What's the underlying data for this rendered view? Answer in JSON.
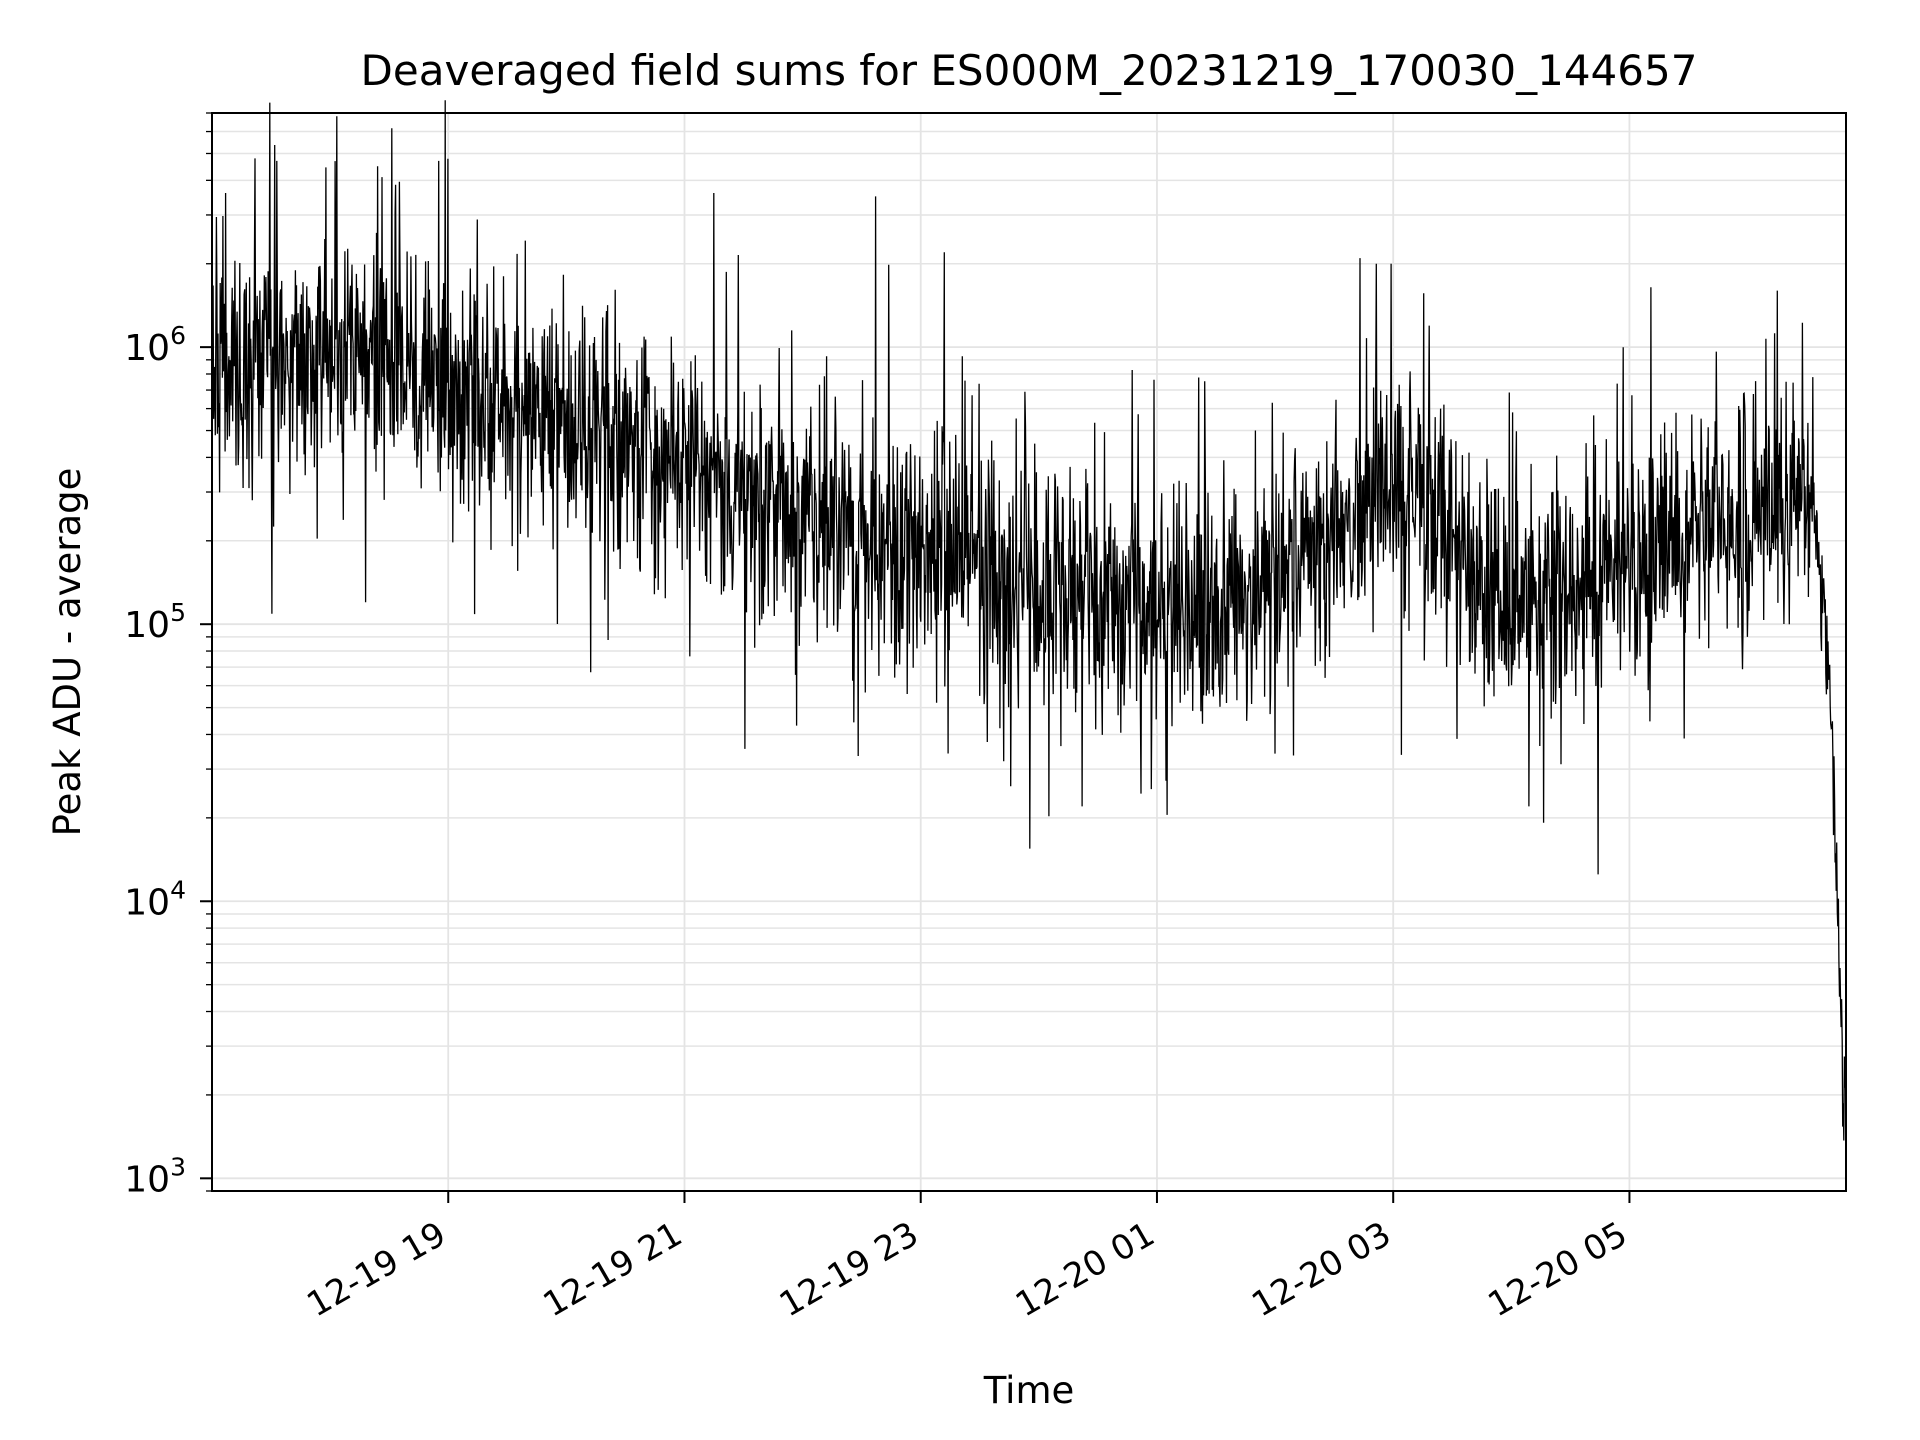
{
  "chart_data": {
    "type": "line",
    "title": "Deaveraged field sums for ES000M_20231219_170030_144657",
    "xlabel": "Time",
    "ylabel": "Peak ADU - average",
    "y_scale": "log",
    "ylim": [
      900,
      7000000
    ],
    "xlim": [
      "2023-12-19 17:00",
      "2023-12-20 06:50"
    ],
    "grid": true,
    "x_ticks": [
      {
        "label": "12-19 19",
        "value": "2023-12-19 19:00"
      },
      {
        "label": "12-19 21",
        "value": "2023-12-19 21:00"
      },
      {
        "label": "12-19 23",
        "value": "2023-12-19 23:00"
      },
      {
        "label": "12-20 01",
        "value": "2023-12-20 01:00"
      },
      {
        "label": "12-20 03",
        "value": "2023-12-20 03:00"
      },
      {
        "label": "12-20 05",
        "value": "2023-12-20 05:00"
      }
    ],
    "y_ticks": [
      {
        "base": "10",
        "exp": "3",
        "value": 1000
      },
      {
        "base": "10",
        "exp": "4",
        "value": 10000
      },
      {
        "base": "10",
        "exp": "5",
        "value": 100000
      },
      {
        "base": "10",
        "exp": "6",
        "value": 1000000
      }
    ],
    "series": [
      {
        "color": "#000000",
        "trend": {
          "time": [
            "2023-12-19 17:00",
            "2023-12-19 18:00",
            "2023-12-19 19:00",
            "2023-12-19 20:00",
            "2023-12-19 21:00",
            "2023-12-19 22:00",
            "2023-12-19 23:00",
            "2023-12-20 00:00",
            "2023-12-20 01:00",
            "2023-12-20 02:00",
            "2023-12-20 03:00",
            "2023-12-20 04:00",
            "2023-12-20 05:00",
            "2023-12-20 06:00",
            "2023-12-20 06:35",
            "2023-12-20 06:42",
            "2023-12-20 06:46",
            "2023-12-20 06:50"
          ],
          "value": [
            900000,
            900000,
            800000,
            500000,
            350000,
            230000,
            180000,
            130000,
            110000,
            140000,
            320000,
            110000,
            160000,
            260000,
            260000,
            60000,
            8000,
            1300
          ]
        },
        "peaks": [
          {
            "time": "2023-12-19 17:22",
            "value": 4800000
          },
          {
            "time": "2023-12-19 17:33",
            "value": 4700000
          },
          {
            "time": "2023-12-19 18:24",
            "value": 4500000
          },
          {
            "time": "2023-12-19 18:55",
            "value": 4700000
          },
          {
            "time": "2023-12-19 21:15",
            "value": 3600000
          },
          {
            "time": "2023-12-19 22:37",
            "value": 3500000
          },
          {
            "time": "2023-12-19 23:12",
            "value": 2200000
          },
          {
            "time": "2023-12-20 01:50",
            "value": 500000
          },
          {
            "time": "2023-12-20 02:59",
            "value": 2000000
          },
          {
            "time": "2023-12-20 06:15",
            "value": 1600000
          }
        ],
        "dips": [
          {
            "time": "2023-12-19 18:18",
            "value": 120000
          },
          {
            "time": "2023-12-19 23:42",
            "value": 32000
          },
          {
            "time": "2023-12-20 00:22",
            "value": 22000
          },
          {
            "time": "2023-12-20 04:09",
            "value": 22000
          },
          {
            "time": "2023-12-20 04:44",
            "value": 12500
          }
        ]
      }
    ]
  }
}
